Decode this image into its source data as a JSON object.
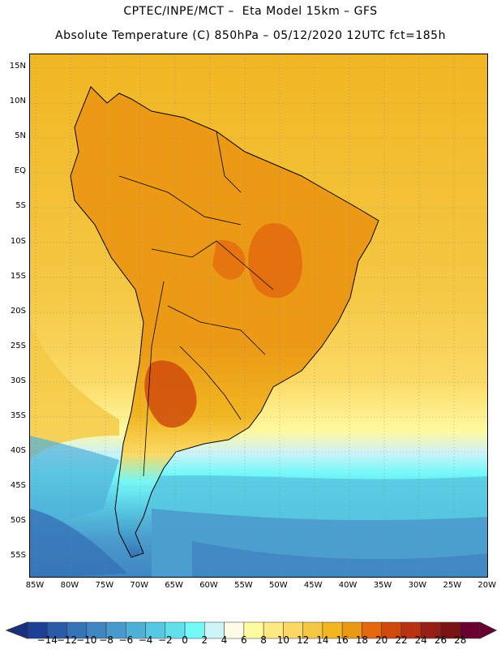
{
  "header": {
    "line1": "CPTEC/INPE/MCT –  Eta Model 15km – GFS",
    "line2": "Absolute Temperature (C) 850hPa – 05/12/2020 12UTC fct=185h"
  },
  "axes": {
    "lat_labels": [
      "15N",
      "10N",
      "5N",
      "EQ",
      "5S",
      "10S",
      "15S",
      "20S",
      "25S",
      "30S",
      "35S",
      "40S",
      "45S",
      "50S",
      "55S"
    ],
    "lon_labels": [
      "85W",
      "80W",
      "75W",
      "70W",
      "65W",
      "60W",
      "55W",
      "50W",
      "45W",
      "40W",
      "35W",
      "30W",
      "25W",
      "20W"
    ]
  },
  "legend": {
    "labels": [
      "-14",
      "-12",
      "-10",
      "-8",
      "-6",
      "-4",
      "-2",
      "0",
      "2",
      "4",
      "6",
      "8",
      "10",
      "12",
      "14",
      "16",
      "18",
      "20",
      "22",
      "24",
      "26",
      "28"
    ],
    "colors": [
      "#1e3f96",
      "#2a5aa8",
      "#3573b6",
      "#3f86c2",
      "#4a99cc",
      "#4fb1d8",
      "#57c8e2",
      "#63dfec",
      "#74f8f8",
      "#cdf2f8",
      "#fffbe6",
      "#fefaa0",
      "#fde882",
      "#fbd964",
      "#f5c844",
      "#f1b622",
      "#ec9a16",
      "#e4680d",
      "#d04b0b",
      "#b83310",
      "#962014",
      "#7a1414",
      "#6a0030"
    ],
    "under_color": "#1a2f80",
    "over_color": "#6a0030"
  }
}
